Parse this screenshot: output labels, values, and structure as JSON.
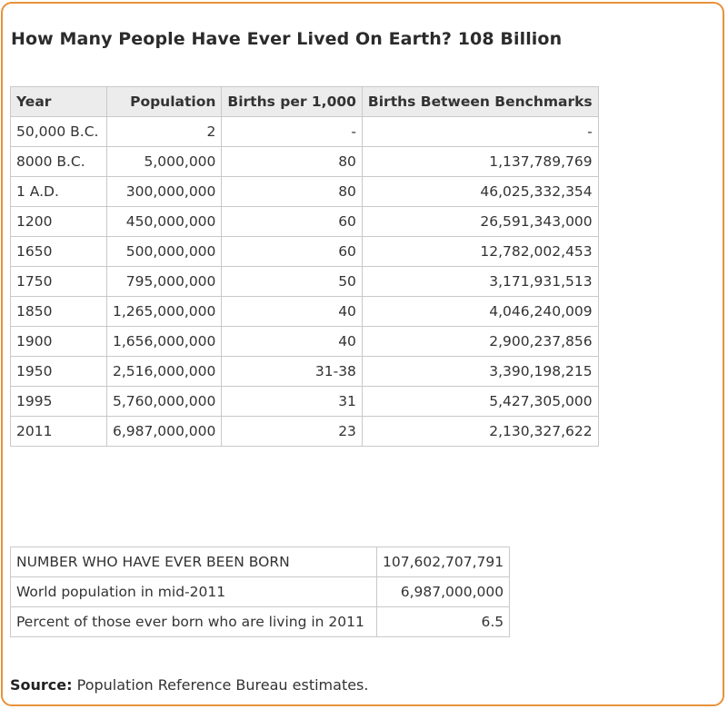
{
  "title": "How Many People Have Ever Lived On Earth? 108 Billion",
  "table": {
    "headers": [
      "Year",
      "Population",
      "Births per 1,000",
      "Births Between Benchmarks"
    ],
    "rows": [
      [
        "50,000 B.C.",
        "2",
        "-",
        "-"
      ],
      [
        "8000 B.C.",
        "5,000,000",
        "80",
        "1,137,789,769"
      ],
      [
        "1 A.D.",
        "300,000,000",
        "80",
        "46,025,332,354"
      ],
      [
        "1200",
        "450,000,000",
        "60",
        "26,591,343,000"
      ],
      [
        "1650",
        "500,000,000",
        "60",
        "12,782,002,453"
      ],
      [
        "1750",
        "795,000,000",
        "50",
        "3,171,931,513"
      ],
      [
        "1850",
        "1,265,000,000",
        "40",
        "4,046,240,009"
      ],
      [
        "1900",
        "1,656,000,000",
        "40",
        "2,900,237,856"
      ],
      [
        "1950",
        "2,516,000,000",
        "31-38",
        "3,390,198,215"
      ],
      [
        "1995",
        "5,760,000,000",
        "31",
        "5,427,305,000"
      ],
      [
        "2011",
        "6,987,000,000",
        "23",
        "2,130,327,622"
      ]
    ]
  },
  "summary": {
    "rows": [
      [
        "NUMBER WHO HAVE EVER BEEN BORN",
        "107,602,707,791"
      ],
      [
        "World population in mid-2011",
        "6,987,000,000"
      ],
      [
        "Percent of those ever born who are living in 2011",
        "6.5"
      ]
    ]
  },
  "source": {
    "label": "Source:",
    "text": "Population Reference Bureau estimates."
  },
  "colors": {
    "border_accent": "#e8913a",
    "header_bg": "#ececec"
  }
}
